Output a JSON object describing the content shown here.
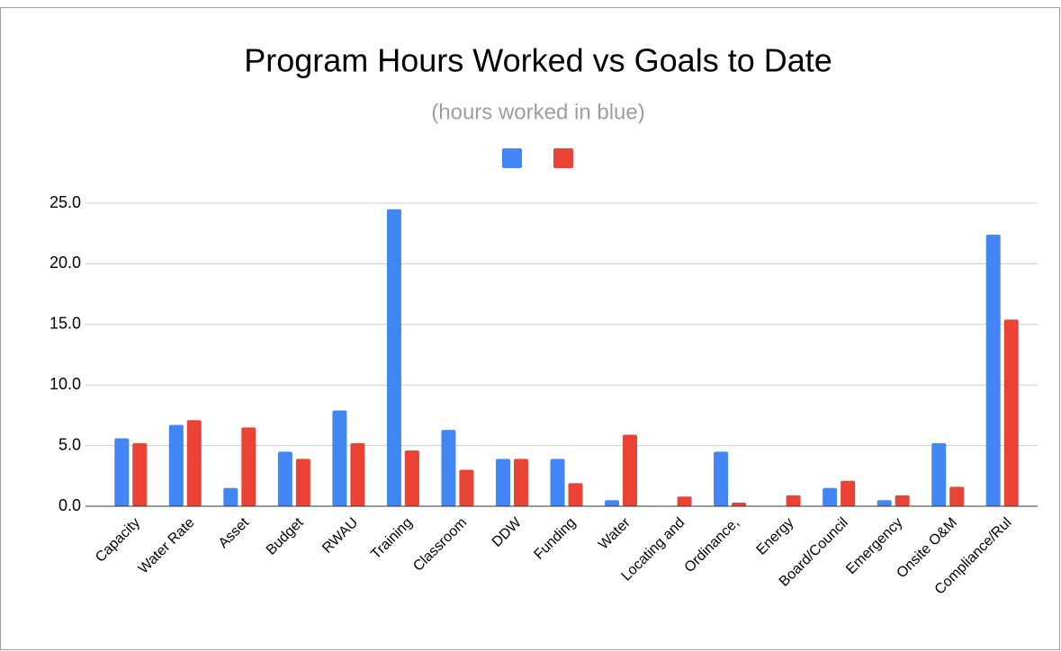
{
  "chart_data": {
    "type": "bar",
    "title": "Program Hours Worked vs Goals to Date",
    "subtitle": "(hours worked in blue)",
    "categories": [
      "Capacity",
      "Water Rate",
      "Asset",
      "Budget",
      "RWAU",
      "Training",
      "Classroom",
      "DDW",
      "Funding",
      "Water",
      "Locating and",
      "Ordinance,",
      "Energy",
      "Board/Council",
      "Emergency",
      "Onsite O&M",
      "Compliance/Rul"
    ],
    "series": [
      {
        "color": "#4285f4",
        "values": [
          5.6,
          6.7,
          1.5,
          4.5,
          7.9,
          24.5,
          6.3,
          3.9,
          3.9,
          0.5,
          0,
          4.5,
          0,
          1.5,
          0.5,
          5.2,
          22.4
        ]
      },
      {
        "color": "#ea4335",
        "values": [
          5.2,
          7.1,
          6.5,
          3.9,
          5.2,
          4.6,
          3.0,
          3.9,
          1.9,
          5.9,
          0.8,
          0.3,
          0.9,
          2.1,
          0.9,
          1.6,
          15.4
        ]
      }
    ],
    "ylim": [
      0,
      25
    ],
    "yticks": [
      {
        "value": 0,
        "label": "0.0"
      },
      {
        "value": 5,
        "label": "5.0"
      },
      {
        "value": 10,
        "label": "10.0"
      },
      {
        "value": 15,
        "label": "15.0"
      },
      {
        "value": 20,
        "label": "20.0"
      },
      {
        "value": 25,
        "label": "25.0"
      }
    ],
    "grid": true
  }
}
